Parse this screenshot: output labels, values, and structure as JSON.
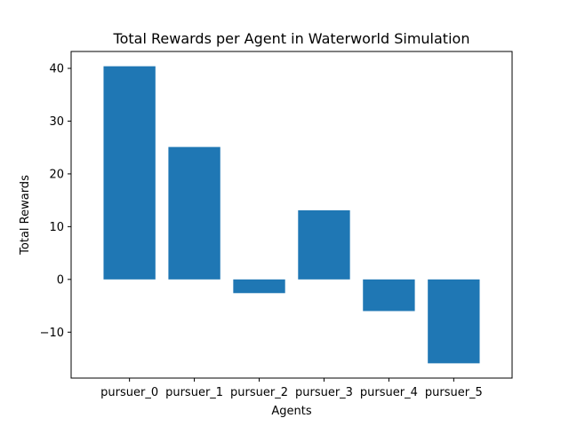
{
  "chart_data": {
    "type": "bar",
    "title": "Total Rewards per Agent in Waterworld Simulation",
    "xlabel": "Agents",
    "ylabel": "Total Rewards",
    "categories": [
      "pursuer_0",
      "pursuer_1",
      "pursuer_2",
      "pursuer_3",
      "pursuer_4",
      "pursuer_5"
    ],
    "values": [
      40.4,
      25.1,
      -2.6,
      13.1,
      -6.0,
      -15.9
    ],
    "ylim": [
      -18.7,
      43.2
    ],
    "yticks": [
      -10,
      0,
      10,
      20,
      30,
      40
    ],
    "ytick_labels": [
      "−10",
      "0",
      "10",
      "20",
      "30",
      "40"
    ],
    "bar_color": "#1f77b4",
    "grid": false,
    "legend": "none"
  }
}
